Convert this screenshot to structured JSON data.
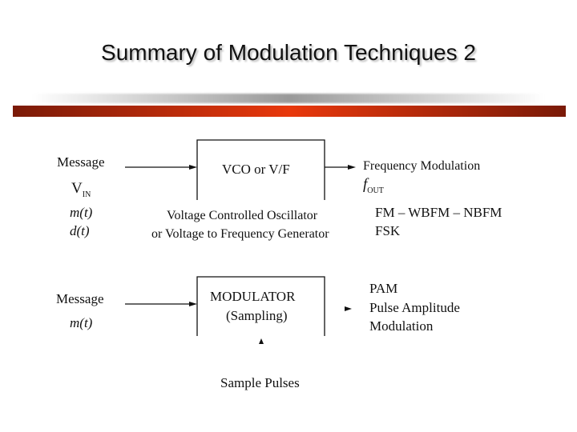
{
  "title": "Summary of Modulation Techniques 2",
  "colors": {
    "accent_bar": "#e8380c",
    "accent_bar_dark": "#7a1a08"
  },
  "fm": {
    "input_label": "Message",
    "input_vin": "V",
    "input_vin_sub": "IN",
    "input_m": "m(t)",
    "input_d": "d(t)",
    "block_label": "VCO or V/F",
    "caption_1": "Voltage Controlled Oscillator",
    "caption_2": "or Voltage to Frequency Generator",
    "output_label": "Frequency Modulation",
    "output_f": "f",
    "output_f_sub": "OUT",
    "types_1": "FM – WBFM – NBFM",
    "types_2": "FSK"
  },
  "pam": {
    "input_label": "Message",
    "input_m": "m(t)",
    "block_label_1": "MODULATOR",
    "block_label_2": "(Sampling)",
    "output_1": "PAM",
    "output_2": "Pulse Amplitude",
    "output_3": "Modulation",
    "pulse_label": "Sample Pulses"
  }
}
